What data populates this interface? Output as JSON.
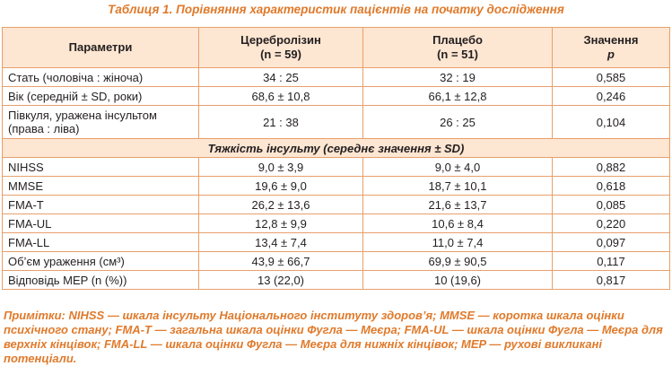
{
  "caption": "Таблиця 1. Порівняння характеристик пацієнтів на початку дослідження",
  "table": {
    "headers": {
      "param": "Параметри",
      "cerebro_line1": "Церебролізин",
      "cerebro_line2": "(n = 59)",
      "placebo_line1": "Плацебо",
      "placebo_line2": "(n = 51)",
      "p_line1": "Значення",
      "p_line2": "p"
    },
    "rows_top": [
      {
        "param": "Стать (чоловіча : жіноча)",
        "cerebro": "34 : 25",
        "placebo": "32 : 19",
        "p": "0,585"
      },
      {
        "param": "Вік (середній ± SD, роки)",
        "cerebro": "68,6 ± 10,8",
        "placebo": "66,1 ± 12,8",
        "p": "0,246"
      },
      {
        "param_line1": "Півкуля, уражена інсультом",
        "param_line2": "(права : ліва)",
        "cerebro": "21 : 38",
        "placebo": "26 : 25",
        "p": "0,104"
      }
    ],
    "section_title": "Тяжкість інсульту (середнє значення ± SD)",
    "rows_bottom": [
      {
        "param": "NIHSS",
        "cerebro": "9,0 ± 3,9",
        "placebo": "9,0 ± 4,0",
        "p": "0,882"
      },
      {
        "param": "MMSE",
        "cerebro": "19,6 ± 9,0",
        "placebo": "18,7 ± 10,1",
        "p": "0,618"
      },
      {
        "param": "FMA-T",
        "cerebro": "26,2 ± 13,6",
        "placebo": "21,6 ± 13,7",
        "p": "0,085"
      },
      {
        "param": "FMA-UL",
        "cerebro": "12,8 ± 9,9",
        "placebo": "10,6 ± 8,4",
        "p": "0,220"
      },
      {
        "param": "FMA-LL",
        "cerebro": "13,4 ± 7,4",
        "placebo": "11,0 ± 7,4",
        "p": "0,097"
      },
      {
        "param": "Об’єм ураження (см³)",
        "cerebro": "43,9 ± 66,7",
        "placebo": "69,9 ± 90,5",
        "p": "0,117"
      },
      {
        "param": "Відповідь MEP (n (%))",
        "cerebro": "13 (22,0)",
        "placebo": "10 (19,6)",
        "p": "0,817"
      }
    ]
  },
  "notes": "Примітки: NIHSS — шкала інсульту Національного інституту здоров’я; MMSE — коротка шкала оцінки психічного стану; FMA-T — загальна шкала оцінки Фугла — Меєра; FMA-UL — шкала оцінки Фугла — Меєра для верхніх кінцівок; FMA-LL — шкала оцінки Фугла — Меєра для нижніх кінцівок; MEP — рухові викликані потенціали.",
  "colors": {
    "accent": "#e07a2b",
    "header_bg": "#fde6d2",
    "border": "#e8a06c"
  }
}
